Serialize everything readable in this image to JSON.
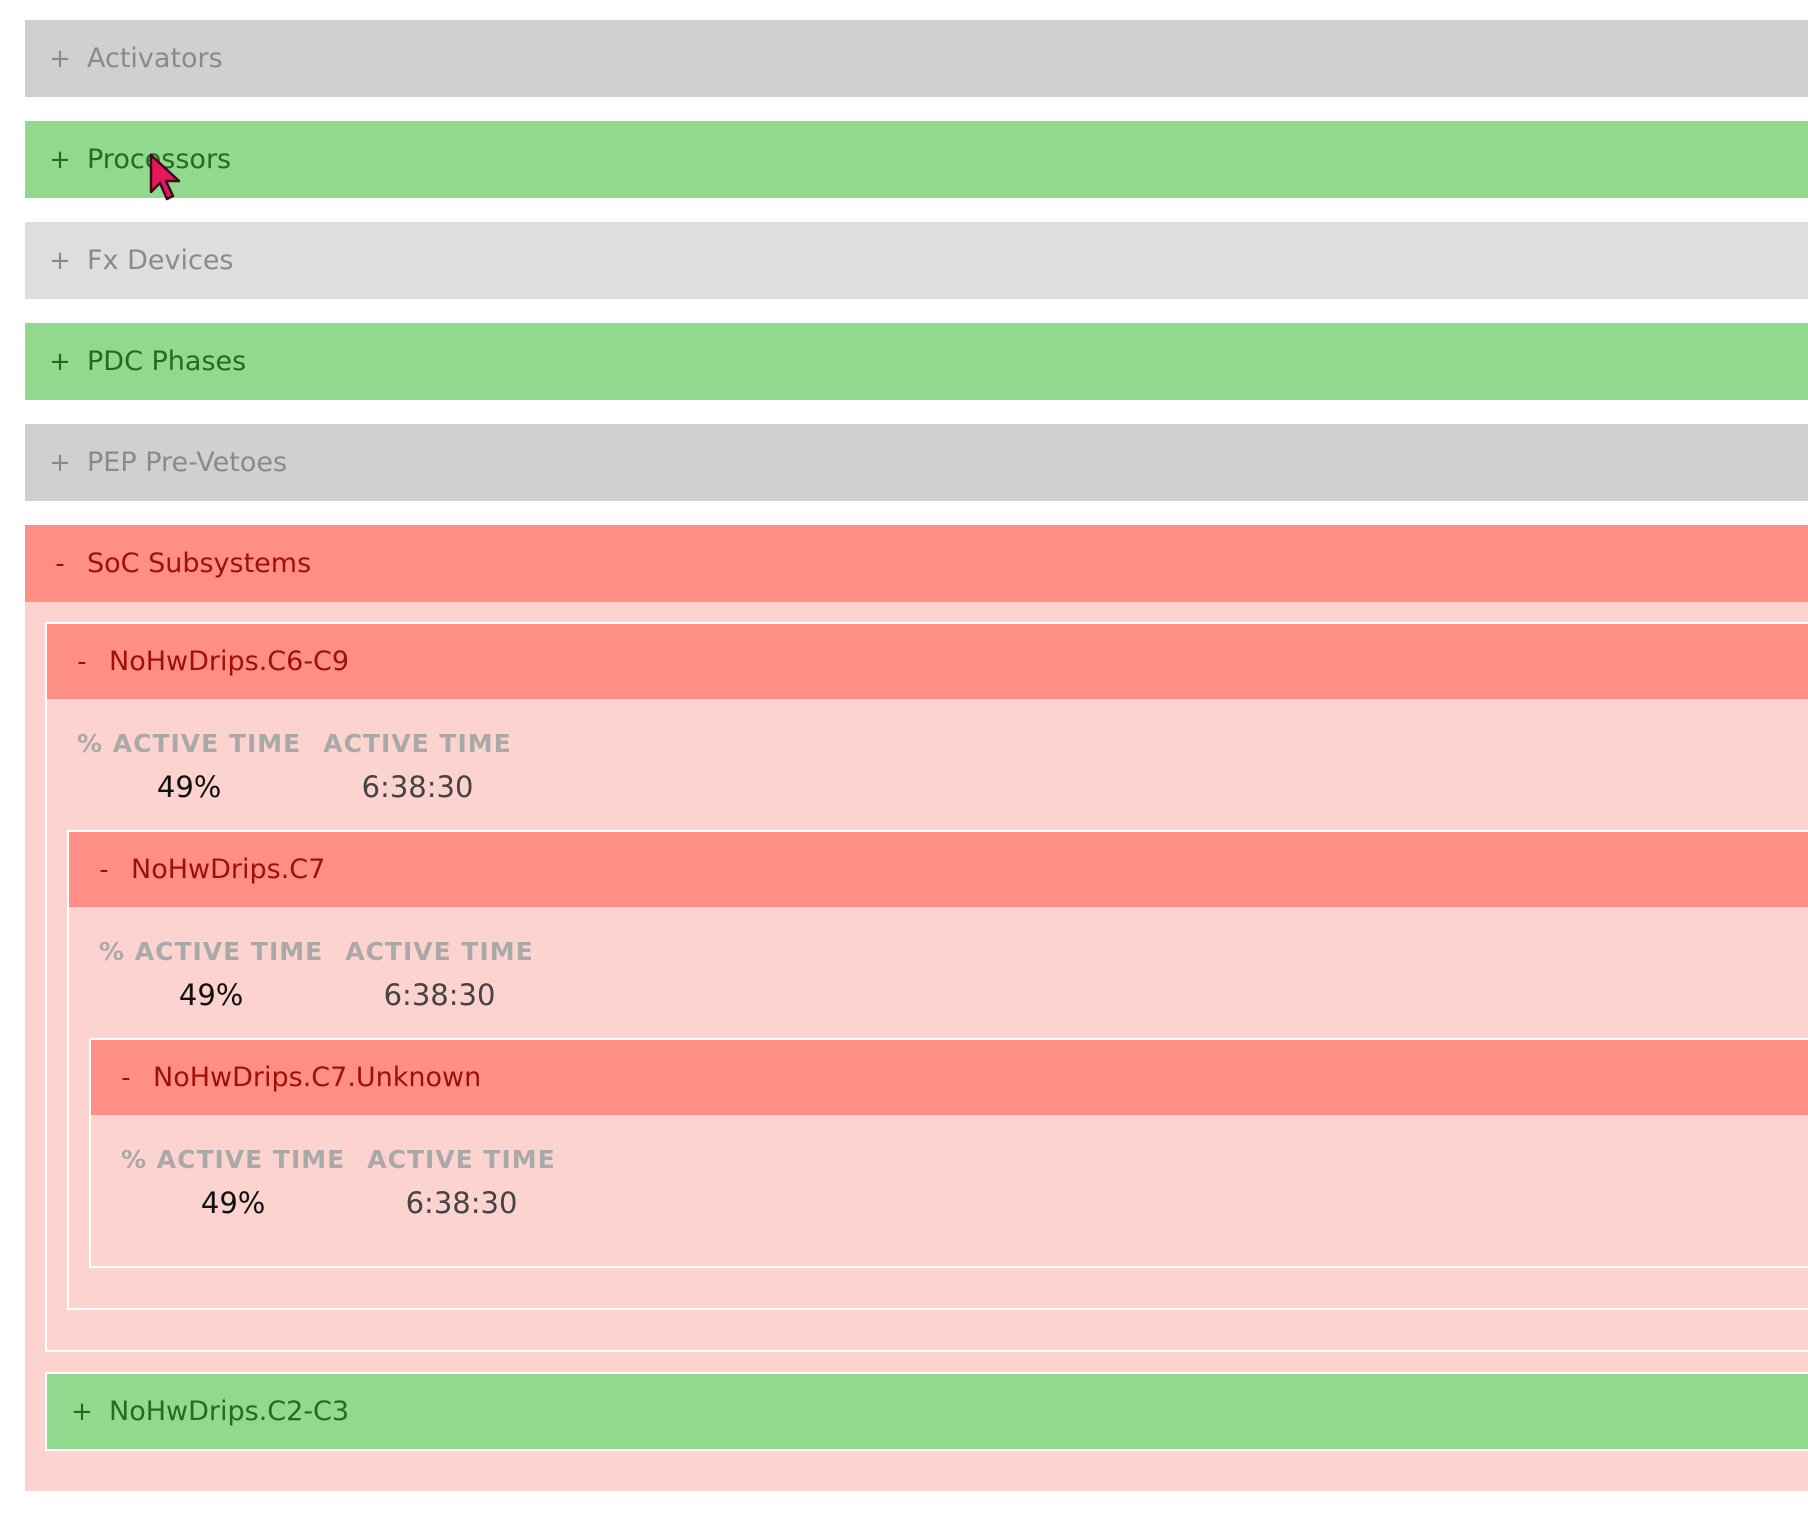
{
  "colors": {
    "grey": "#d0d0d0",
    "green": "#90d98e",
    "red": "#ff8f84",
    "panel": "#fdd3d0"
  },
  "sections": [
    {
      "label": "Activators",
      "toggle": "+"
    },
    {
      "label": "Processors",
      "toggle": "+"
    },
    {
      "label": "Fx Devices",
      "toggle": "+"
    },
    {
      "label": "PDC Phases",
      "toggle": "+"
    },
    {
      "label": "PEP Pre-Vetoes",
      "toggle": "+"
    },
    {
      "label": "SoC Subsystems",
      "toggle": "-"
    }
  ],
  "soc": {
    "c6c9": {
      "label": "NoHwDrips.C6-C9",
      "toggle": "-",
      "pct_label": "% ACTIVE TIME",
      "time_label": "ACTIVE TIME",
      "pct": "49%",
      "time": "6:38:30"
    },
    "c7": {
      "label": "NoHwDrips.C7",
      "toggle": "-",
      "pct_label": "% ACTIVE TIME",
      "time_label": "ACTIVE TIME",
      "pct": "49%",
      "time": "6:38:30"
    },
    "c7unknown": {
      "label": "NoHwDrips.C7.Unknown",
      "toggle": "-",
      "pct_label": "% ACTIVE TIME",
      "time_label": "ACTIVE TIME",
      "pct": "49%",
      "time": "6:38:30"
    },
    "c2c3": {
      "label": "NoHwDrips.C2-C3",
      "toggle": "+"
    }
  }
}
